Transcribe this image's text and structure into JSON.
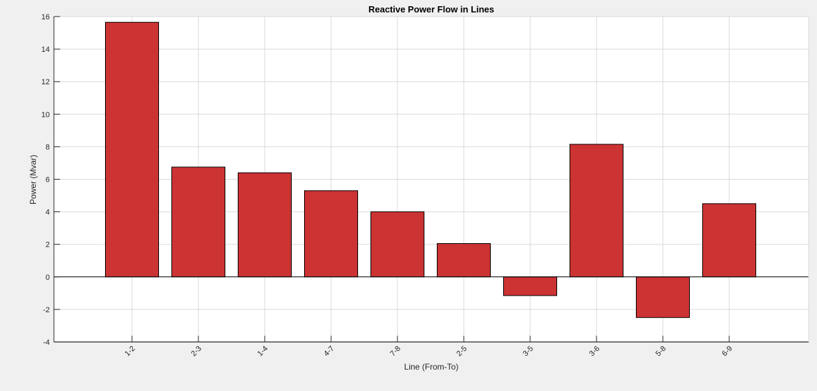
{
  "chart_data": {
    "type": "bar",
    "title": "Reactive Power Flow in Lines",
    "xlabel": "Line (From-To)",
    "ylabel": "Power (Mvar)",
    "categories": [
      "1-2",
      "2-3",
      "1-4",
      "4-7",
      "7-8",
      "2-5",
      "3-5",
      "3-6",
      "5-8",
      "6-9"
    ],
    "values": [
      15.65,
      6.75,
      6.4,
      5.3,
      4.0,
      2.05,
      -1.15,
      8.15,
      -2.5,
      4.5
    ],
    "ylim": [
      -4,
      16
    ],
    "yticks": [
      -4,
      -2,
      0,
      2,
      4,
      6,
      8,
      10,
      12,
      14,
      16
    ],
    "grid": true,
    "colors": {
      "bar_fill": "#cc3333",
      "bar_edge": "#000000",
      "axes_background": "#ffffff",
      "figure_background": "#f0f0f0",
      "grid": "#d9d9d9"
    }
  }
}
